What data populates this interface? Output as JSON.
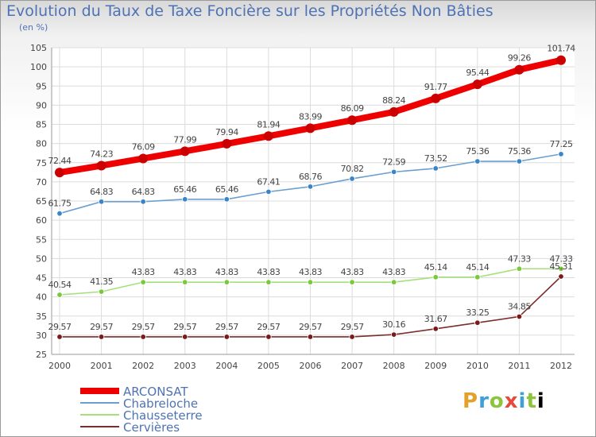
{
  "header": {
    "title": "Evolution du Taux de Taxe Foncière sur les Propriétés Non Bâties",
    "unit": "(en %)"
  },
  "logo": {
    "text": "Proxiti"
  },
  "chart_data": {
    "type": "line",
    "x": [
      "2000",
      "2001",
      "2002",
      "2003",
      "2004",
      "2005",
      "2006",
      "2007",
      "2008",
      "2009",
      "2010",
      "2011",
      "2012"
    ],
    "ylim": [
      25,
      105
    ],
    "yticks": [
      25,
      30,
      35,
      40,
      45,
      50,
      55,
      60,
      65,
      70,
      75,
      80,
      85,
      90,
      95,
      100,
      105
    ],
    "grid": true,
    "legend_position": "bottom-left",
    "series": [
      {
        "name": "ARCONSAT",
        "color": "#ee0000",
        "marker": "#cc0000",
        "values": [
          72.44,
          74.23,
          76.09,
          77.99,
          79.94,
          81.94,
          83.99,
          86.09,
          88.24,
          91.77,
          95.44,
          99.26,
          101.74
        ],
        "labels": [
          "72.44",
          "74.23",
          "76.09",
          "77.99",
          "79.94",
          "81.94",
          "83.99",
          "86.09",
          "88.24",
          "91.77",
          "95.44",
          "99.26",
          "101.74"
        ]
      },
      {
        "name": "Chabreloche",
        "color": "#6a9fd0",
        "marker": "#3a84c8",
        "values": [
          61.75,
          64.83,
          64.83,
          65.46,
          65.46,
          67.41,
          68.76,
          70.82,
          72.59,
          73.52,
          75.36,
          75.36,
          77.25
        ],
        "labels": [
          "61.75",
          "64.83",
          "64.83",
          "65.46",
          "65.46",
          "67.41",
          "68.76",
          "70.82",
          "72.59",
          "73.52",
          "75.36",
          "75.36",
          "77.25"
        ]
      },
      {
        "name": "Chausseterre",
        "color": "#a6e07c",
        "marker": "#7cc83c",
        "values": [
          40.54,
          41.35,
          43.83,
          43.83,
          43.83,
          43.83,
          43.83,
          43.83,
          43.83,
          45.14,
          45.14,
          47.33,
          47.33
        ],
        "labels": [
          "40.54",
          "41.35",
          "43.83",
          "43.83",
          "43.83",
          "43.83",
          "43.83",
          "43.83",
          "43.83",
          "45.14",
          "45.14",
          "47.33",
          "47.33"
        ]
      },
      {
        "name": "Cervières",
        "color": "#7a2e2e",
        "marker": "#7a1a1a",
        "values": [
          29.57,
          29.57,
          29.57,
          29.57,
          29.57,
          29.57,
          29.57,
          29.57,
          30.16,
          31.67,
          33.25,
          34.85,
          45.31
        ],
        "labels": [
          "29.57",
          "29.57",
          "29.57",
          "29.57",
          "29.57",
          "29.57",
          "29.57",
          "29.57",
          "30.16",
          "31.67",
          "33.25",
          "34.85",
          "45.31"
        ]
      }
    ]
  }
}
